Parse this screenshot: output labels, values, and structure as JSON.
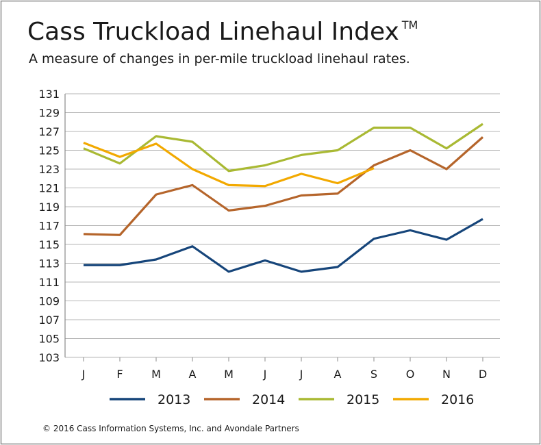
{
  "chart_data": {
    "type": "line",
    "title": "Cass Truckload Linehaul Index",
    "title_mark": "TM",
    "subtitle": "A measure of changes in per-mile truckload linehaul rates.",
    "categories": [
      "J",
      "F",
      "M",
      "A",
      "M",
      "J",
      "J",
      "A",
      "S",
      "O",
      "N",
      "D"
    ],
    "series": [
      {
        "name": "2013",
        "color": "#16457a",
        "values": [
          112.8,
          112.8,
          113.4,
          114.8,
          112.1,
          113.3,
          112.1,
          112.6,
          115.6,
          116.5,
          115.5,
          117.7
        ]
      },
      {
        "name": "2014",
        "color": "#b5652b",
        "values": [
          116.1,
          116.0,
          120.3,
          121.3,
          118.6,
          119.1,
          120.2,
          120.4,
          123.4,
          125.0,
          123.0,
          126.4
        ]
      },
      {
        "name": "2015",
        "color": "#a9b933",
        "values": [
          125.2,
          123.6,
          126.5,
          125.9,
          122.8,
          123.4,
          124.5,
          125.0,
          127.4,
          127.4,
          125.2,
          127.8
        ]
      },
      {
        "name": "2016",
        "color": "#f2a900",
        "values": [
          125.8,
          124.3,
          125.7,
          123.0,
          121.3,
          121.2,
          122.5,
          121.5,
          123.1,
          null,
          null,
          null
        ]
      }
    ],
    "ylim": [
      103,
      131
    ],
    "yticks": [
      103,
      105,
      107,
      109,
      111,
      113,
      115,
      117,
      119,
      121,
      123,
      125,
      127,
      129,
      131
    ],
    "grid": true,
    "legend": "bottom",
    "footnote": "© 2016 Cass Information Systems, Inc. and Avondale Partners"
  }
}
